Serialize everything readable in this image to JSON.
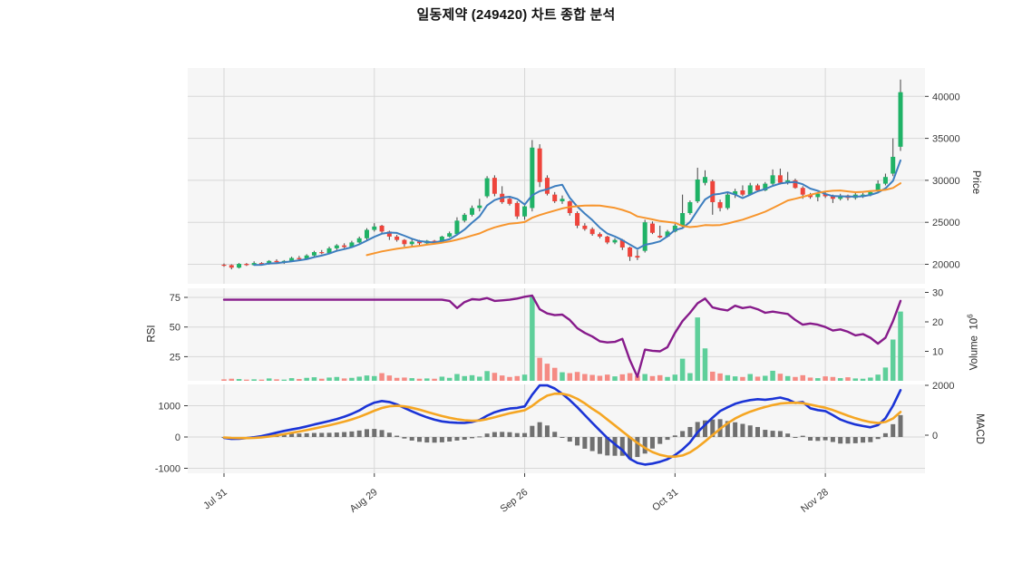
{
  "title": "일동제약 (249420) 차트 종합 분석",
  "axes": {
    "price_label": "Price",
    "rsi_label": "RSI",
    "volume_label": "Volume",
    "volume_unit_base": "10",
    "volume_unit_exp": "6",
    "macd_label": "MACD",
    "price_ticks": [
      20000,
      25000,
      30000,
      35000,
      40000
    ],
    "rsi_ticks": [
      25,
      50,
      75
    ],
    "volume_ticks": [
      10,
      20,
      30
    ],
    "macd_left_ticks": [
      -1000,
      0,
      1000
    ],
    "macd_right_ticks": [
      0,
      2000
    ],
    "x_ticks": [
      {
        "bar": 0,
        "label": "Jul 31"
      },
      {
        "bar": 20,
        "label": "Aug 29"
      },
      {
        "bar": 40,
        "label": "Sep 26"
      },
      {
        "bar": 60,
        "label": "Oct 31"
      },
      {
        "bar": 80,
        "label": "Nov 28"
      }
    ]
  },
  "colors": {
    "candle_up": "#1fb266",
    "candle_down": "#ee443b",
    "volume_up": "#5ecf9a",
    "volume_down": "#f58b84",
    "ma_fast": "#3d7ebf",
    "ma_slow": "#f7952d",
    "rsi_line": "#871b8b",
    "macd_line": "#1b34d6",
    "macd_signal": "#f5a623",
    "macd_hist": "#707070",
    "panel_bg": "#f6f6f6",
    "grid": "#d7d7d7",
    "tick_text": "#3a3a3a",
    "title_text": "#111111"
  },
  "chart_data": {
    "type": "candlestick+indicators",
    "bars": 91,
    "panels": [
      {
        "name": "price",
        "series": [
          "ohlc",
          "ma_fast(SMA5)",
          "ma_slow(SMA20)"
        ],
        "ylim": [
          17600,
          43500
        ]
      },
      {
        "name": "rsi_volume",
        "series": [
          "rsi",
          "volume"
        ],
        "rsi_ylim": [
          0,
          80
        ],
        "volume_ylim_millions": [
          0,
          31
        ]
      },
      {
        "name": "macd",
        "series": [
          "macd",
          "signal",
          "histogram=macd-signal"
        ],
        "ylim": [
          -1700,
          1700
        ]
      }
    ],
    "ohlc": [
      [
        19950,
        20100,
        19700,
        19900
      ],
      [
        19900,
        20000,
        19400,
        19600
      ],
      [
        19600,
        20150,
        19500,
        20050
      ],
      [
        20050,
        20150,
        19800,
        19900
      ],
      [
        19900,
        20350,
        19850,
        20150
      ],
      [
        20150,
        20250,
        19900,
        20000
      ],
      [
        20000,
        20500,
        19950,
        20400
      ],
      [
        20400,
        20600,
        20100,
        20250
      ],
      [
        20250,
        20500,
        20050,
        20400
      ],
      [
        20400,
        20900,
        20300,
        20750
      ],
      [
        20750,
        21000,
        20500,
        20600
      ],
      [
        20600,
        21200,
        20550,
        21050
      ],
      [
        21050,
        21600,
        20900,
        21450
      ],
      [
        21450,
        21700,
        21200,
        21350
      ],
      [
        21350,
        22100,
        21300,
        21900
      ],
      [
        21900,
        22400,
        21700,
        22250
      ],
      [
        22250,
        22500,
        21900,
        22050
      ],
      [
        22050,
        22800,
        22000,
        22600
      ],
      [
        22600,
        23300,
        22500,
        23100
      ],
      [
        23100,
        24300,
        22900,
        24100
      ],
      [
        24100,
        24900,
        23900,
        24500
      ],
      [
        24600,
        24700,
        23700,
        23900
      ],
      [
        23900,
        24000,
        22900,
        23300
      ],
      [
        23300,
        23500,
        22700,
        22900
      ],
      [
        22900,
        23000,
        22100,
        22400
      ],
      [
        22400,
        23000,
        22100,
        22700
      ],
      [
        22700,
        22900,
        22300,
        22500
      ],
      [
        22500,
        22900,
        22400,
        22800
      ],
      [
        22800,
        22900,
        22400,
        22600
      ],
      [
        22600,
        23400,
        22500,
        23300
      ],
      [
        23300,
        23900,
        23200,
        23700
      ],
      [
        23600,
        25600,
        23500,
        25200
      ],
      [
        25200,
        26100,
        25000,
        25900
      ],
      [
        25900,
        27000,
        25700,
        26700
      ],
      [
        26700,
        27800,
        26300,
        27000
      ],
      [
        28100,
        30500,
        27900,
        30250
      ],
      [
        30300,
        30600,
        28100,
        28400
      ],
      [
        28400,
        29300,
        27200,
        27400
      ],
      [
        27800,
        28100,
        27000,
        27200
      ],
      [
        27300,
        27500,
        25400,
        25700
      ],
      [
        25700,
        27000,
        25300,
        26900
      ],
      [
        26700,
        34800,
        26300,
        33900
      ],
      [
        33800,
        34300,
        29200,
        29800
      ],
      [
        30300,
        30600,
        28200,
        28400
      ],
      [
        28300,
        28600,
        27300,
        27500
      ],
      [
        27500,
        28200,
        27200,
        27800
      ],
      [
        27500,
        27600,
        25800,
        26100
      ],
      [
        26100,
        26300,
        24300,
        24600
      ],
      [
        24600,
        24900,
        24000,
        24200
      ],
      [
        24200,
        24400,
        23400,
        23600
      ],
      [
        23600,
        23800,
        23100,
        23300
      ],
      [
        23300,
        23400,
        22400,
        22600
      ],
      [
        22600,
        23100,
        22400,
        22900
      ],
      [
        22900,
        23000,
        21700,
        22000
      ],
      [
        22000,
        22100,
        20400,
        20900
      ],
      [
        21000,
        21700,
        20500,
        20800
      ],
      [
        21600,
        25300,
        21400,
        25000
      ],
      [
        24850,
        25100,
        23600,
        23750
      ],
      [
        23400,
        24600,
        23100,
        23200
      ],
      [
        23300,
        24100,
        23200,
        23900
      ],
      [
        23900,
        24800,
        23800,
        24600
      ],
      [
        24600,
        28300,
        24400,
        26100
      ],
      [
        26100,
        27600,
        25900,
        27400
      ],
      [
        27500,
        31500,
        27300,
        30100
      ],
      [
        29700,
        31200,
        29400,
        30400
      ],
      [
        29900,
        30100,
        25900,
        27400
      ],
      [
        27400,
        27700,
        26300,
        26700
      ],
      [
        26700,
        28500,
        26500,
        28300
      ],
      [
        28300,
        29000,
        27900,
        28700
      ],
      [
        28800,
        29400,
        28100,
        28300
      ],
      [
        28300,
        29700,
        28200,
        29400
      ],
      [
        29400,
        29600,
        28600,
        28800
      ],
      [
        28800,
        29800,
        28700,
        29600
      ],
      [
        29600,
        31300,
        29400,
        30600
      ],
      [
        30600,
        31400,
        29500,
        29700
      ],
      [
        29700,
        31000,
        29500,
        30000
      ],
      [
        30000,
        30200,
        29000,
        29100
      ],
      [
        29100,
        29300,
        27800,
        28300
      ],
      [
        28300,
        28500,
        27800,
        28000
      ],
      [
        28000,
        28600,
        27500,
        28400
      ],
      [
        28400,
        28700,
        27900,
        28100
      ],
      [
        28100,
        28300,
        27300,
        27800
      ],
      [
        27800,
        28400,
        27600,
        28200
      ],
      [
        28200,
        28300,
        27600,
        27900
      ],
      [
        27900,
        28500,
        27700,
        28300
      ],
      [
        28200,
        28500,
        27900,
        28300
      ],
      [
        28300,
        28800,
        28100,
        28600
      ],
      [
        28700,
        30000,
        28500,
        29600
      ],
      [
        29600,
        30800,
        29400,
        30400
      ],
      [
        30800,
        35000,
        30500,
        32800
      ],
      [
        34000,
        42000,
        33500,
        40500
      ]
    ],
    "volume_millions": [
      0.5,
      0.7,
      0.6,
      0.4,
      0.5,
      0.4,
      0.8,
      0.5,
      0.4,
      0.9,
      0.6,
      1.0,
      1.2,
      0.7,
      1.1,
      1.3,
      0.8,
      1.0,
      1.4,
      1.8,
      1.6,
      2.6,
      1.8,
      1.0,
      1.1,
      0.9,
      0.7,
      0.8,
      0.7,
      1.4,
      1.0,
      2.3,
      1.6,
      1.9,
      1.4,
      3.3,
      2.7,
      1.8,
      1.3,
      1.6,
      2.1,
      28.5,
      7.8,
      5.8,
      4.4,
      2.9,
      2.6,
      3.0,
      2.3,
      2.0,
      1.7,
      2.1,
      1.5,
      2.2,
      2.6,
      1.7,
      2.3,
      1.6,
      1.9,
      1.3,
      2.1,
      7.5,
      2.6,
      21.5,
      11.0,
      3.1,
      2.5,
      1.9,
      1.5,
      1.3,
      2.3,
      1.4,
      1.7,
      3.4,
      2.4,
      1.6,
      1.3,
      1.9,
      1.1,
      0.9,
      1.5,
      1.3,
      0.9,
      1.2,
      0.8,
      0.7,
      1.1,
      2.1,
      4.5,
      14.0,
      23.5
    ],
    "rsi": [
      73,
      73,
      73,
      73,
      73,
      73,
      73,
      73,
      73,
      73,
      73,
      73,
      73,
      73,
      73,
      73,
      73,
      73,
      73,
      73,
      73,
      73,
      73,
      73,
      73,
      73,
      73,
      73,
      73,
      73,
      72,
      66,
      71,
      73.5,
      73,
      74.5,
      72,
      72.5,
      73,
      74,
      75.5,
      76.5,
      65,
      61.5,
      60,
      60.5,
      56,
      49,
      45,
      42,
      38,
      37,
      37.5,
      40,
      22,
      8,
      31,
      30,
      29.5,
      33,
      45,
      55,
      62,
      70,
      74,
      66.5,
      65,
      64,
      68,
      66,
      67,
      65,
      62,
      63,
      62,
      61,
      56,
      52,
      53,
      52,
      50,
      47,
      48,
      46,
      43,
      44,
      41,
      36,
      41,
      55,
      72
    ],
    "macd": [
      -30,
      -60,
      -55,
      -35,
      -10,
      30,
      80,
      140,
      195,
      240,
      285,
      340,
      400,
      455,
      510,
      575,
      650,
      740,
      850,
      990,
      1100,
      1150,
      1120,
      1040,
      930,
      820,
      720,
      630,
      555,
      500,
      470,
      455,
      450,
      480,
      545,
      680,
      790,
      860,
      910,
      930,
      980,
      1350,
      1650,
      1690,
      1550,
      1380,
      1180,
      950,
      700,
      450,
      210,
      -30,
      -230,
      -420,
      -700,
      -830,
      -880,
      -850,
      -790,
      -710,
      -580,
      -400,
      -170,
      150,
      390,
      620,
      830,
      950,
      1060,
      1130,
      1180,
      1210,
      1190,
      1220,
      1260,
      1200,
      1090,
      1120,
      920,
      860,
      830,
      700,
      560,
      470,
      400,
      350,
      310,
      380,
      600,
      1000,
      1500
    ],
    "macd_signal": [
      -15,
      -28,
      -35,
      -35,
      -28,
      -12,
      14,
      49,
      90,
      132,
      175,
      221,
      271,
      323,
      375,
      431,
      492,
      562,
      643,
      740,
      841,
      928,
      982,
      998,
      979,
      934,
      874,
      806,
      736,
      670,
      614,
      569,
      536,
      520,
      527,
      570,
      632,
      696,
      756,
      805,
      854,
      993,
      1177,
      1321,
      1385,
      1384,
      1327,
      1221,
      1075,
      900,
      750,
      560,
      370,
      180,
      -10,
      -190,
      -350,
      -480,
      -570,
      -620,
      -630,
      -590,
      -490,
      -330,
      -140,
      60,
      260,
      440,
      590,
      710,
      810,
      890,
      960,
      1020,
      1070,
      1090,
      1095,
      1080,
      1035,
      985,
      935,
      860,
      770,
      680,
      600,
      530,
      475,
      445,
      480,
      590,
      800
    ]
  }
}
